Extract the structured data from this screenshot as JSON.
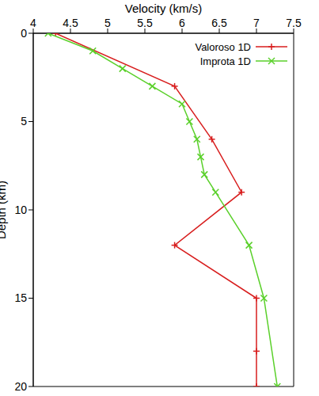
{
  "chart_data": {
    "type": "line",
    "x_label": "Velocity (km/s)",
    "y_label": "Depth (km)",
    "xlim": [
      4,
      7.5
    ],
    "xticks": [
      4,
      4.5,
      5,
      5.5,
      6,
      6.5,
      7,
      7.5
    ],
    "ylim": [
      0,
      20
    ],
    "yticks": [
      0,
      5,
      10,
      15,
      20
    ],
    "legend": "upper right",
    "series": [
      {
        "name": "Valoroso 1D",
        "color": "#d81e1e",
        "marker": "plus",
        "x": [
          4.3,
          5.9,
          6.4,
          6.8,
          5.9,
          7.0,
          7.0,
          7.0
        ],
        "y": [
          0,
          3,
          6,
          9,
          12,
          15,
          18,
          20
        ]
      },
      {
        "name": "Improta 1D",
        "color": "#5ad02a",
        "marker": "cross",
        "x": [
          4.2,
          4.8,
          5.2,
          5.6,
          6.0,
          6.1,
          6.2,
          6.25,
          6.3,
          6.45,
          6.9,
          7.1,
          7.28
        ],
        "y": [
          0,
          1,
          2,
          3,
          4,
          5,
          6,
          7,
          8,
          9,
          12,
          15,
          20
        ]
      }
    ]
  }
}
